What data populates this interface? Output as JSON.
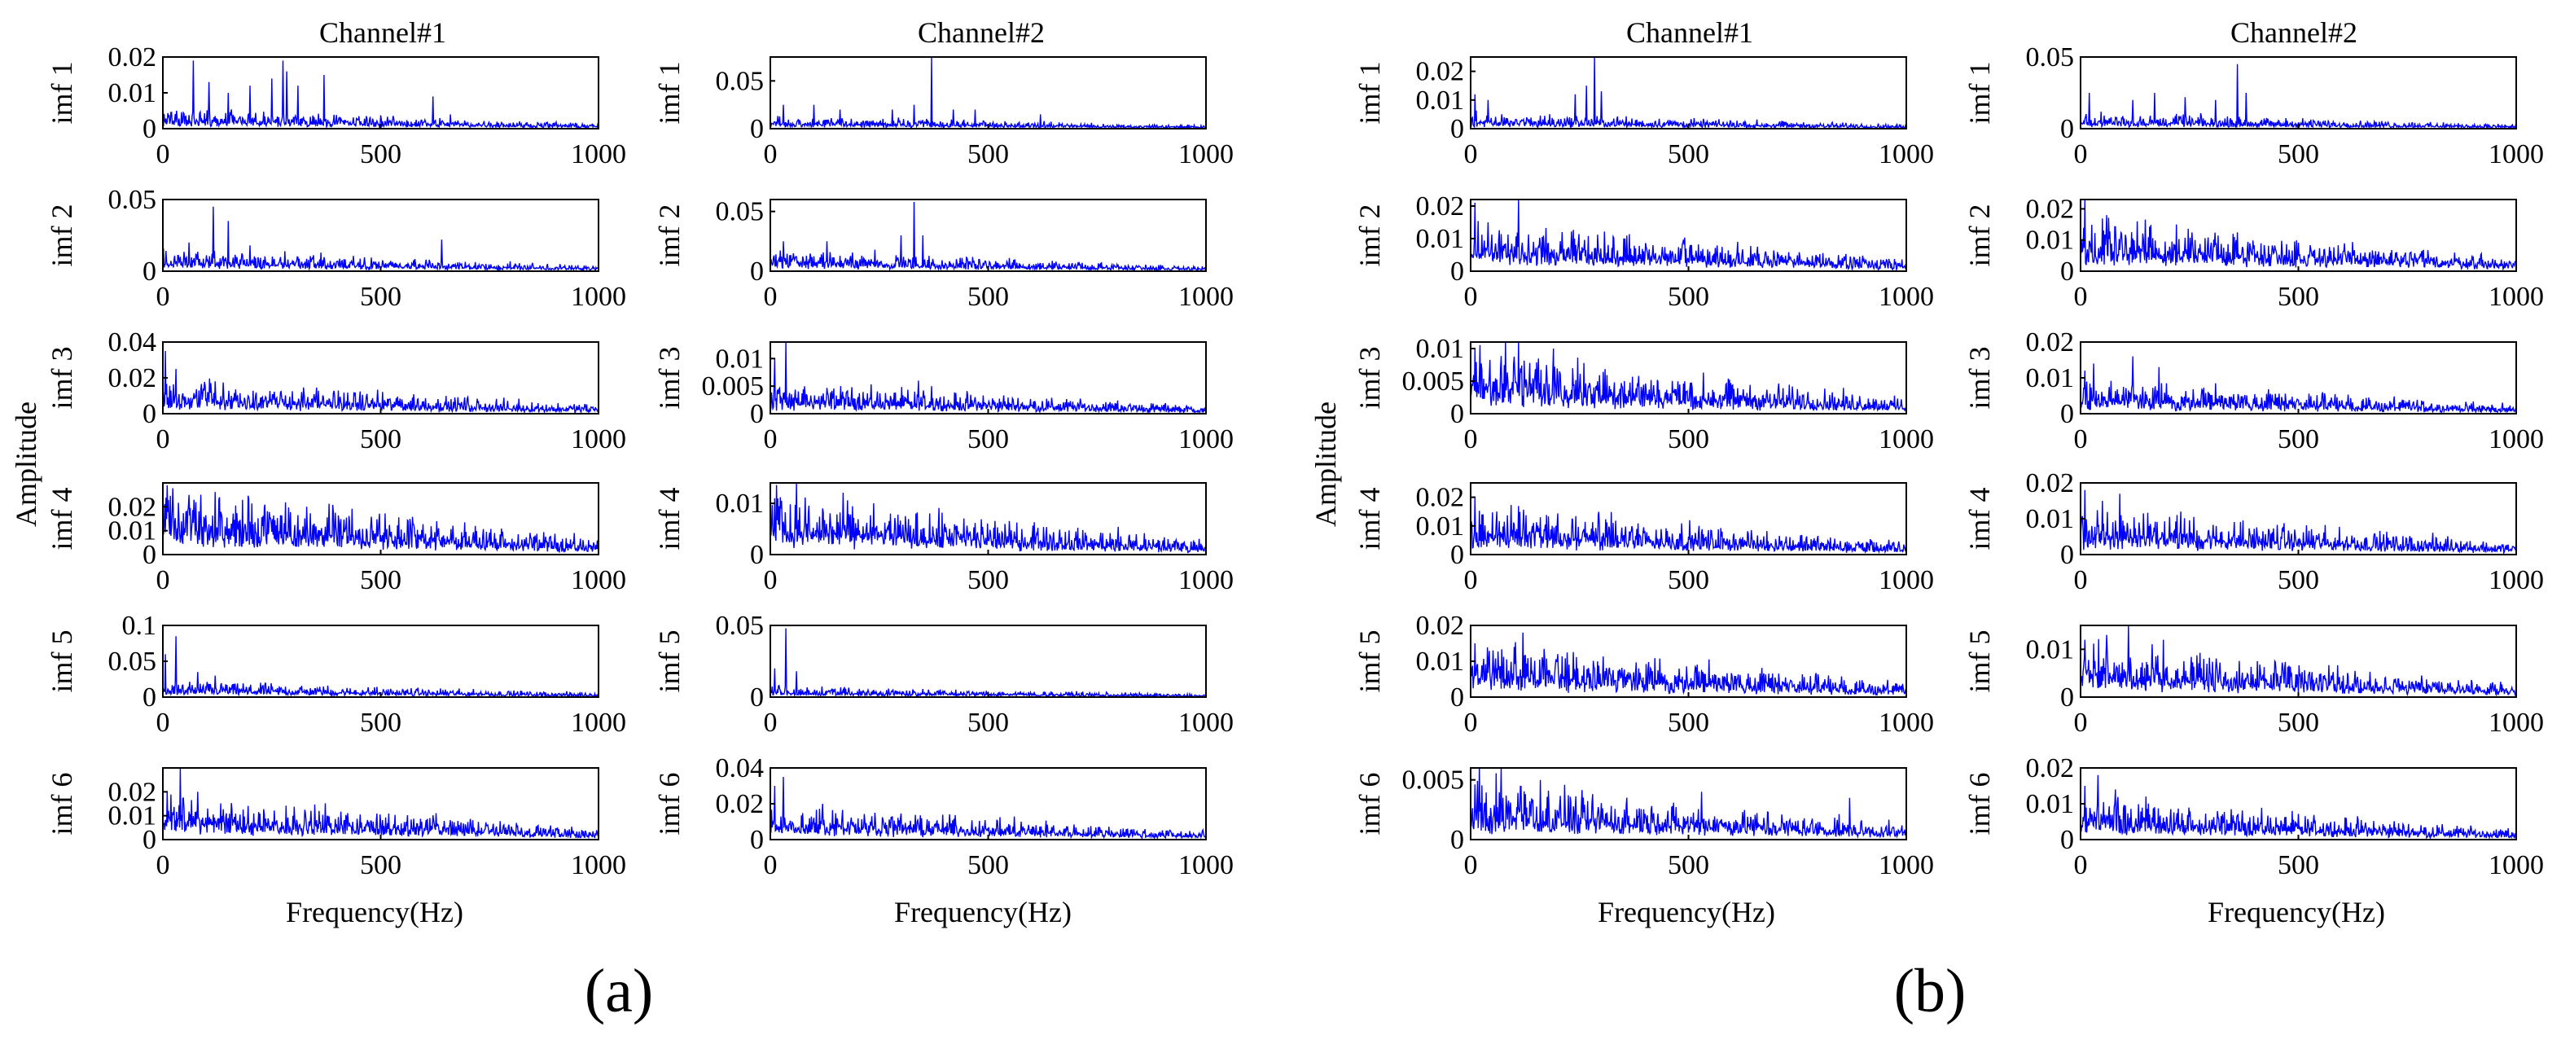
{
  "figure": {
    "panel_labels": [
      "(a)",
      "(b)"
    ],
    "column_titles": [
      "Channel#1",
      "Channel#2"
    ],
    "x_axis_title": "Frequency(Hz)",
    "y_axis_title": "Amplitude",
    "x_ticks": [
      "0",
      "500",
      "1000"
    ],
    "row_labels": [
      "imf 1",
      "imf 2",
      "imf 3",
      "imf 4",
      "imf 5",
      "imf 6"
    ],
    "line_color": "#0000ff"
  },
  "chart_data": [
    {
      "type": "line",
      "panel": "(a)",
      "channel": "Channel#1",
      "xlabel": "Frequency(Hz)",
      "ylabel": "Amplitude",
      "xlim": [
        0,
        1000
      ],
      "series": [
        {
          "name": "imf 1",
          "ylim": [
            0,
            0.02
          ],
          "yticks": [
            "0",
            "0.01",
            "0.02"
          ],
          "baseline": 0.003,
          "peaks": [
            [
              70,
              0.019
            ],
            [
              105,
              0.013
            ],
            [
              150,
              0.01
            ],
            [
              200,
              0.012
            ],
            [
              250,
              0.014
            ],
            [
              275,
              0.019
            ],
            [
              285,
              0.016
            ],
            [
              310,
              0.012
            ],
            [
              370,
              0.015
            ],
            [
              620,
              0.009
            ],
            [
              660,
              0.004
            ]
          ],
          "seed": 11
        },
        {
          "name": "imf 2",
          "ylim": [
            0,
            0.05
          ],
          "yticks": [
            "0",
            "0.05"
          ],
          "baseline": 0.008,
          "peaks": [
            [
              60,
              0.02
            ],
            [
              115,
              0.045
            ],
            [
              150,
              0.035
            ],
            [
              200,
              0.018
            ],
            [
              280,
              0.014
            ],
            [
              640,
              0.022
            ],
            [
              520,
              0.006
            ]
          ],
          "seed": 12
        },
        {
          "name": "imf 3",
          "ylim": [
            0,
            0.04
          ],
          "yticks": [
            "0",
            "0.02",
            "0.04"
          ],
          "baseline": 0.01,
          "peaks": [
            [
              5,
              0.035
            ],
            [
              30,
              0.025
            ],
            [
              110,
              0.017
            ]
          ],
          "seed": 13
        },
        {
          "name": "imf 4",
          "ylim": [
            0,
            0.03
          ],
          "yticks": [
            "0",
            "0.01",
            "0.02"
          ],
          "baseline": 0.014,
          "peaks": [
            [
              10,
              0.029
            ],
            [
              60,
              0.025
            ],
            [
              130,
              0.024
            ],
            [
              330,
              0.02
            ]
          ],
          "seed": 14
        },
        {
          "name": "imf 5",
          "ylim": [
            0,
            0.1
          ],
          "yticks": [
            "0",
            "0.05",
            "0.1"
          ],
          "baseline": 0.012,
          "peaks": [
            [
              5,
              0.06
            ],
            [
              30,
              0.085
            ],
            [
              80,
              0.035
            ],
            [
              120,
              0.03
            ]
          ],
          "seed": 15
        },
        {
          "name": "imf 6",
          "ylim": [
            0,
            0.03
          ],
          "yticks": [
            "0",
            "0.01",
            "0.02"
          ],
          "baseline": 0.01,
          "peaks": [
            [
              10,
              0.02
            ],
            [
              40,
              0.032
            ],
            [
              80,
              0.02
            ]
          ],
          "seed": 16
        }
      ]
    },
    {
      "type": "line",
      "panel": "(a)",
      "channel": "Channel#2",
      "xlabel": "Frequency(Hz)",
      "ylabel": "Amplitude",
      "xlim": [
        0,
        1000
      ],
      "series": [
        {
          "name": "imf 1",
          "ylim": [
            0,
            0.075
          ],
          "yticks": [
            "0",
            "0.05"
          ],
          "baseline": 0.007,
          "peaks": [
            [
              30,
              0.025
            ],
            [
              100,
              0.025
            ],
            [
              160,
              0.02
            ],
            [
              280,
              0.02
            ],
            [
              330,
              0.025
            ],
            [
              370,
              0.075
            ],
            [
              420,
              0.02
            ],
            [
              470,
              0.02
            ],
            [
              620,
              0.015
            ]
          ],
          "seed": 21
        },
        {
          "name": "imf 2",
          "ylim": [
            0,
            0.06
          ],
          "yticks": [
            "0",
            "0.05"
          ],
          "baseline": 0.009,
          "peaks": [
            [
              30,
              0.025
            ],
            [
              130,
              0.025
            ],
            [
              240,
              0.018
            ],
            [
              300,
              0.03
            ],
            [
              330,
              0.058
            ],
            [
              350,
              0.03
            ]
          ],
          "seed": 22
        },
        {
          "name": "imf 3",
          "ylim": [
            0,
            0.013
          ],
          "yticks": [
            "0",
            "0.005",
            "0.01"
          ],
          "baseline": 0.003,
          "peaks": [
            [
              10,
              0.01
            ],
            [
              35,
              0.013
            ],
            [
              340,
              0.006
            ],
            [
              370,
              0.005
            ]
          ],
          "seed": 23
        },
        {
          "name": "imf 4",
          "ylim": [
            0,
            0.014
          ],
          "yticks": [
            "0",
            "0.01"
          ],
          "baseline": 0.006,
          "peaks": [
            [
              10,
              0.011
            ],
            [
              60,
              0.014
            ],
            [
              120,
              0.009
            ]
          ],
          "seed": 24
        },
        {
          "name": "imf 5",
          "ylim": [
            0,
            0.05
          ],
          "yticks": [
            "0",
            "0.05"
          ],
          "baseline": 0.004,
          "peaks": [
            [
              10,
              0.02
            ],
            [
              35,
              0.048
            ],
            [
              60,
              0.018
            ]
          ],
          "seed": 25
        },
        {
          "name": "imf 6",
          "ylim": [
            0,
            0.04
          ],
          "yticks": [
            "0",
            "0.02",
            "0.04"
          ],
          "baseline": 0.01,
          "peaks": [
            [
              10,
              0.03
            ],
            [
              30,
              0.035
            ],
            [
              120,
              0.02
            ],
            [
              240,
              0.015
            ]
          ],
          "seed": 26
        }
      ]
    },
    {
      "type": "line",
      "panel": "(b)",
      "channel": "Channel#1",
      "xlabel": "Frequency(Hz)",
      "ylabel": "Amplitude",
      "xlim": [
        0,
        1000
      ],
      "series": [
        {
          "name": "imf 1",
          "ylim": [
            0,
            0.025
          ],
          "yticks": [
            "0",
            "0.01",
            "0.02"
          ],
          "baseline": 0.003,
          "peaks": [
            [
              10,
              0.012
            ],
            [
              40,
              0.01
            ],
            [
              240,
              0.012
            ],
            [
              265,
              0.015
            ],
            [
              285,
              0.025
            ],
            [
              300,
              0.013
            ]
          ],
          "seed": 31
        },
        {
          "name": "imf 2",
          "ylim": [
            0,
            0.022
          ],
          "yticks": [
            "0",
            "0.01",
            "0.02"
          ],
          "baseline": 0.008,
          "peaks": [
            [
              10,
              0.021
            ],
            [
              40,
              0.015
            ],
            [
              110,
              0.022
            ],
            [
              210,
              0.012
            ]
          ],
          "seed": 32
        },
        {
          "name": "imf 3",
          "ylim": [
            0,
            0.011
          ],
          "yticks": [
            "0",
            "0.005",
            "0.01"
          ],
          "baseline": 0.005,
          "peaks": [
            [
              10,
              0.01
            ],
            [
              80,
              0.011
            ],
            [
              110,
              0.011
            ],
            [
              190,
              0.01
            ]
          ],
          "seed": 33
        },
        {
          "name": "imf 4",
          "ylim": [
            0,
            0.025
          ],
          "yticks": [
            "0",
            "0.01",
            "0.02"
          ],
          "baseline": 0.009,
          "peaks": [
            [
              10,
              0.02
            ],
            [
              60,
              0.015
            ],
            [
              160,
              0.013
            ]
          ],
          "seed": 34
        },
        {
          "name": "imf 5",
          "ylim": [
            0,
            0.02
          ],
          "yticks": [
            "0",
            "0.01",
            "0.02"
          ],
          "baseline": 0.008,
          "peaks": [
            [
              10,
              0.015
            ],
            [
              100,
              0.014
            ],
            [
              120,
              0.018
            ],
            [
              200,
              0.012
            ]
          ],
          "seed": 35
        },
        {
          "name": "imf 6",
          "ylim": [
            0,
            0.006
          ],
          "yticks": [
            "0",
            "0.005"
          ],
          "baseline": 0.0025,
          "peaks": [
            [
              20,
              0.006
            ],
            [
              70,
              0.006
            ],
            [
              160,
              0.005
            ],
            [
              530,
              0.004
            ],
            [
              870,
              0.0035
            ]
          ],
          "seed": 36
        }
      ]
    },
    {
      "type": "line",
      "panel": "(b)",
      "channel": "Channel#2",
      "xlabel": "Frequency(Hz)",
      "ylabel": "Amplitude",
      "xlim": [
        0,
        1000
      ],
      "series": [
        {
          "name": "imf 1",
          "ylim": [
            0,
            0.05
          ],
          "yticks": [
            "0",
            "0.05"
          ],
          "baseline": 0.006,
          "peaks": [
            [
              20,
              0.025
            ],
            [
              120,
              0.02
            ],
            [
              170,
              0.025
            ],
            [
              240,
              0.022
            ],
            [
              310,
              0.02
            ],
            [
              360,
              0.045
            ],
            [
              380,
              0.025
            ]
          ],
          "seed": 41
        },
        {
          "name": "imf 2",
          "ylim": [
            0,
            0.023
          ],
          "yticks": [
            "0",
            "0.01",
            "0.02"
          ],
          "baseline": 0.009,
          "peaks": [
            [
              10,
              0.023
            ],
            [
              60,
              0.018
            ],
            [
              130,
              0.016
            ],
            [
              220,
              0.015
            ],
            [
              350,
              0.012
            ]
          ],
          "seed": 42
        },
        {
          "name": "imf 3",
          "ylim": [
            0,
            0.02
          ],
          "yticks": [
            "0",
            "0.01",
            "0.02"
          ],
          "baseline": 0.005,
          "peaks": [
            [
              10,
              0.012
            ],
            [
              30,
              0.014
            ],
            [
              120,
              0.016
            ],
            [
              180,
              0.013
            ]
          ],
          "seed": 43
        },
        {
          "name": "imf 4",
          "ylim": [
            0,
            0.02
          ],
          "yticks": [
            "0",
            "0.01",
            "0.02"
          ],
          "baseline": 0.007,
          "peaks": [
            [
              10,
              0.018
            ],
            [
              50,
              0.015
            ],
            [
              90,
              0.017
            ],
            [
              230,
              0.012
            ]
          ],
          "seed": 44
        },
        {
          "name": "imf 5",
          "ylim": [
            0,
            0.015
          ],
          "yticks": [
            "0",
            "0.01"
          ],
          "baseline": 0.006,
          "peaks": [
            [
              10,
              0.012
            ],
            [
              60,
              0.013
            ],
            [
              110,
              0.015
            ],
            [
              190,
              0.012
            ]
          ],
          "seed": 45
        },
        {
          "name": "imf 6",
          "ylim": [
            0,
            0.02
          ],
          "yticks": [
            "0",
            "0.01",
            "0.02"
          ],
          "baseline": 0.006,
          "peaks": [
            [
              10,
              0.015
            ],
            [
              40,
              0.018
            ],
            [
              80,
              0.014
            ],
            [
              150,
              0.012
            ]
          ],
          "seed": 46
        }
      ]
    }
  ]
}
